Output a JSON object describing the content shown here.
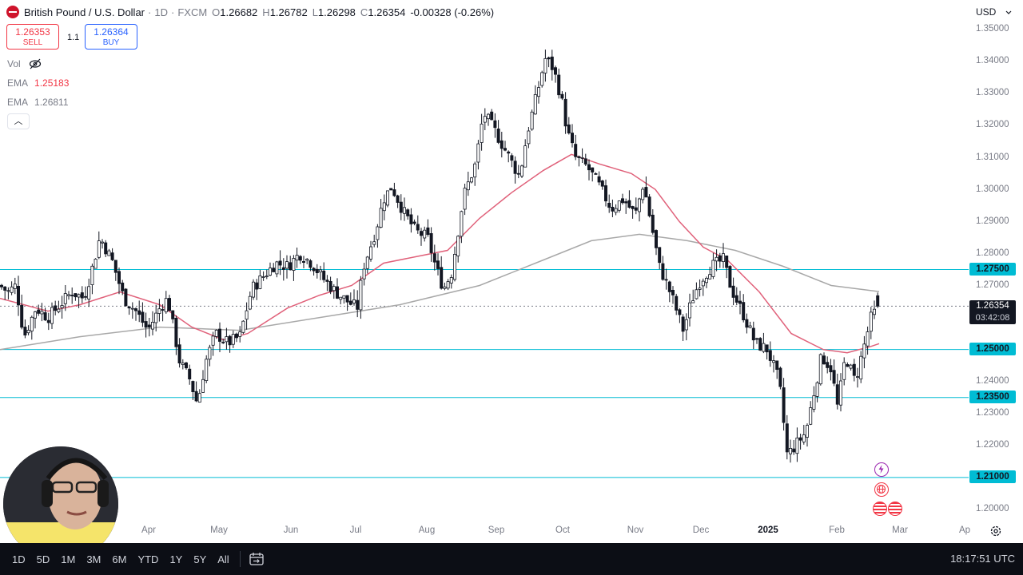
{
  "header": {
    "title": "British Pound / U.S. Dollar",
    "interval": "1D",
    "source": "FXCM",
    "ohlc": [
      {
        "label": "O",
        "value": "1.26682"
      },
      {
        "label": "H",
        "value": "1.26782"
      },
      {
        "label": "L",
        "value": "1.26298"
      },
      {
        "label": "C",
        "value": "1.26354"
      }
    ],
    "change": "-0.00328 (-0.26%)",
    "change_color": "#f23645"
  },
  "trade": {
    "sell_price": "1.26353",
    "sell_label": "SELL",
    "spread": "1.1",
    "buy_price": "1.26364",
    "buy_label": "BUY",
    "sell_color": "#f23645",
    "buy_color": "#2962ff"
  },
  "indicators": [
    {
      "name": "Vol",
      "value": "",
      "icon": "eye-off-icon"
    },
    {
      "name": "EMA",
      "value": "1.25183",
      "color": "#f23645"
    },
    {
      "name": "EMA",
      "value": "1.26811",
      "color": "#787b86"
    }
  ],
  "currency_selector": "USD",
  "price_axis": {
    "ticks": [
      "1.35000",
      "1.34000",
      "1.33000",
      "1.32000",
      "1.31000",
      "1.30000",
      "1.29000",
      "1.28000",
      "1.27000",
      "1.24000",
      "1.23000",
      "1.22000",
      "1.20000"
    ],
    "levels": [
      "1.27500",
      "1.25000",
      "1.23500",
      "1.21000"
    ],
    "level_color": "#00bcd4",
    "current_price": "1.26354",
    "countdown": "03:42:08"
  },
  "time_axis": {
    "labels": [
      "Apr",
      "May",
      "Jun",
      "Jul",
      "Aug",
      "Sep",
      "Oct",
      "Nov",
      "Dec",
      "2025",
      "Feb",
      "Mar",
      "Ap"
    ]
  },
  "bottom_toolbar": {
    "ranges": [
      "1D",
      "5D",
      "1M",
      "3M",
      "6M",
      "YTD",
      "1Y",
      "5Y",
      "All"
    ],
    "clock": "18:17:51 UTC"
  },
  "icons": {
    "symbol": "gbp-flag-icon",
    "vol_visibility": "eye-off-icon",
    "collapse": "chevron-up-icon",
    "currency_dropdown": "chevron-down-icon",
    "goto_date": "calendar-goto-icon",
    "settings": "gear-icon",
    "events": [
      "lightning-icon",
      "globe-icon",
      "us-flag-icon",
      "us-flag-icon"
    ]
  },
  "chart_data": {
    "type": "candlestick",
    "symbol": "GBPUSD",
    "interval": "1D",
    "ylim": [
      1.197,
      1.356
    ],
    "x_labels": [
      "Apr",
      "May",
      "Jun",
      "Jul",
      "Aug",
      "Sep",
      "Oct",
      "Nov",
      "Dec",
      "2025",
      "Feb",
      "Mar"
    ],
    "horizontal_levels": [
      1.275,
      1.25,
      1.235,
      1.21
    ],
    "last_price": 1.26354,
    "price_path": [
      [
        0,
        1.27
      ],
      [
        10,
        1.268
      ],
      [
        20,
        1.27
      ],
      [
        30,
        1.254
      ],
      [
        45,
        1.263
      ],
      [
        60,
        1.26
      ],
      [
        75,
        1.264
      ],
      [
        90,
        1.268
      ],
      [
        105,
        1.266
      ],
      [
        115,
        1.275
      ],
      [
        125,
        1.285
      ],
      [
        140,
        1.278
      ],
      [
        155,
        1.266
      ],
      [
        170,
        1.262
      ],
      [
        185,
        1.256
      ],
      [
        200,
        1.263
      ],
      [
        210,
        1.266
      ],
      [
        225,
        1.246
      ],
      [
        237,
        1.241
      ],
      [
        247,
        1.233
      ],
      [
        257,
        1.246
      ],
      [
        270,
        1.255
      ],
      [
        285,
        1.252
      ],
      [
        300,
        1.254
      ],
      [
        315,
        1.269
      ],
      [
        330,
        1.273
      ],
      [
        345,
        1.277
      ],
      [
        360,
        1.276
      ],
      [
        375,
        1.28
      ],
      [
        390,
        1.277
      ],
      [
        405,
        1.272
      ],
      [
        420,
        1.268
      ],
      [
        435,
        1.265
      ],
      [
        447,
        1.263
      ],
      [
        455,
        1.276
      ],
      [
        470,
        1.287
      ],
      [
        480,
        1.297
      ],
      [
        490,
        1.301
      ],
      [
        505,
        1.293
      ],
      [
        520,
        1.287
      ],
      [
        535,
        1.285
      ],
      [
        545,
        1.276
      ],
      [
        555,
        1.269
      ],
      [
        565,
        1.274
      ],
      [
        580,
        1.298
      ],
      [
        595,
        1.308
      ],
      [
        605,
        1.324
      ],
      [
        620,
        1.318
      ],
      [
        635,
        1.311
      ],
      [
        650,
        1.304
      ],
      [
        660,
        1.318
      ],
      [
        672,
        1.33
      ],
      [
        682,
        1.341
      ],
      [
        692,
        1.338
      ],
      [
        702,
        1.329
      ],
      [
        710,
        1.318
      ],
      [
        720,
        1.31
      ],
      [
        735,
        1.307
      ],
      [
        750,
        1.301
      ],
      [
        765,
        1.294
      ],
      [
        780,
        1.297
      ],
      [
        795,
        1.292
      ],
      [
        805,
        1.302
      ],
      [
        815,
        1.289
      ],
      [
        825,
        1.276
      ],
      [
        840,
        1.267
      ],
      [
        855,
        1.256
      ],
      [
        865,
        1.265
      ],
      [
        875,
        1.271
      ],
      [
        890,
        1.276
      ],
      [
        905,
        1.278
      ],
      [
        915,
        1.269
      ],
      [
        930,
        1.261
      ],
      [
        945,
        1.252
      ],
      [
        960,
        1.25
      ],
      [
        975,
        1.24
      ],
      [
        985,
        1.217
      ],
      [
        995,
        1.22
      ],
      [
        1008,
        1.224
      ],
      [
        1018,
        1.236
      ],
      [
        1028,
        1.248
      ],
      [
        1040,
        1.244
      ],
      [
        1048,
        1.232
      ],
      [
        1058,
        1.248
      ],
      [
        1070,
        1.24
      ],
      [
        1080,
        1.25
      ],
      [
        1090,
        1.26
      ],
      [
        1100,
        1.26354
      ]
    ],
    "ema_fast_path": [
      [
        0,
        1.266
      ],
      [
        60,
        1.262
      ],
      [
        100,
        1.264
      ],
      [
        150,
        1.268
      ],
      [
        200,
        1.264
      ],
      [
        240,
        1.257
      ],
      [
        280,
        1.253
      ],
      [
        310,
        1.255
      ],
      [
        360,
        1.263
      ],
      [
        400,
        1.267
      ],
      [
        440,
        1.27
      ],
      [
        480,
        1.277
      ],
      [
        520,
        1.279
      ],
      [
        560,
        1.281
      ],
      [
        600,
        1.291
      ],
      [
        640,
        1.299
      ],
      [
        680,
        1.306
      ],
      [
        715,
        1.311
      ],
      [
        750,
        1.308
      ],
      [
        790,
        1.305
      ],
      [
        820,
        1.3
      ],
      [
        850,
        1.29
      ],
      [
        880,
        1.282
      ],
      [
        910,
        1.278
      ],
      [
        950,
        1.268
      ],
      [
        990,
        1.255
      ],
      [
        1030,
        1.25
      ],
      [
        1060,
        1.249
      ],
      [
        1090,
        1.251
      ],
      [
        1100,
        1.25183
      ]
    ],
    "ema_slow_path": [
      [
        0,
        1.25
      ],
      [
        100,
        1.254
      ],
      [
        200,
        1.257
      ],
      [
        300,
        1.256
      ],
      [
        400,
        1.26
      ],
      [
        500,
        1.264
      ],
      [
        600,
        1.27
      ],
      [
        680,
        1.278
      ],
      [
        740,
        1.284
      ],
      [
        800,
        1.286
      ],
      [
        860,
        1.284
      ],
      [
        920,
        1.281
      ],
      [
        980,
        1.276
      ],
      [
        1040,
        1.27
      ],
      [
        1100,
        1.26811
      ]
    ]
  }
}
